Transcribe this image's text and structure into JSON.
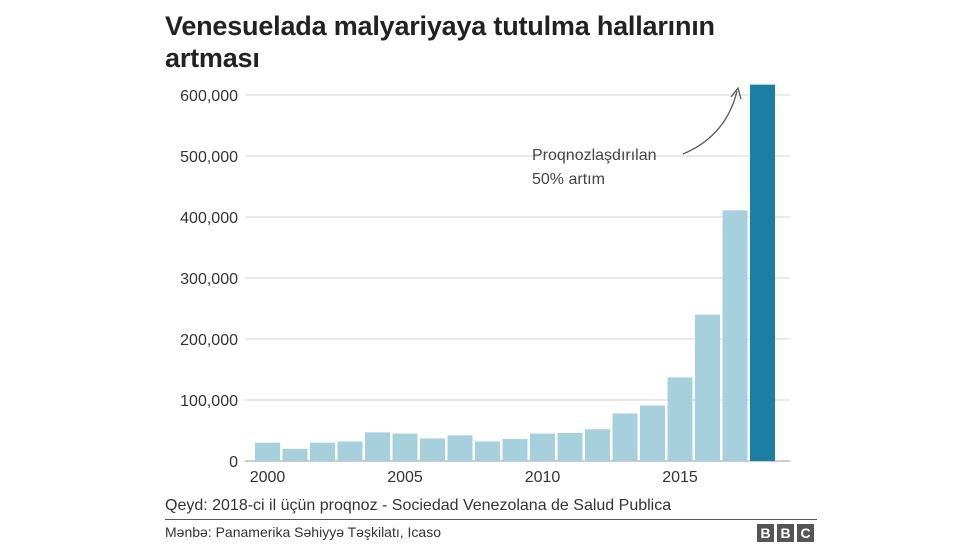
{
  "title": "Venesuelada malyariyaya tutulma hallarının artması",
  "note": "Qeyd: 2018-ci il üçün proqnoz - Sociedad Venezolana de Salud Publica",
  "source": "Mənbə: Panamerika Səhiyyə Təşkilatı, Icaso",
  "logo": [
    "B",
    "B",
    "C"
  ],
  "colors": {
    "bar": "#a7d0dd",
    "forecast_bar": "#1a7fa3",
    "grid": "#d6d6d6",
    "axis_text": "#333333"
  },
  "chart_data": {
    "type": "bar",
    "title": "Venesuelada malyariyaya tutulma hallarının artması",
    "xlabel": "",
    "ylabel": "",
    "categories": [
      2000,
      2001,
      2002,
      2003,
      2004,
      2005,
      2006,
      2007,
      2008,
      2009,
      2010,
      2011,
      2012,
      2013,
      2014,
      2015,
      2016,
      2017,
      2018
    ],
    "values": [
      30000,
      20000,
      30000,
      32000,
      47000,
      45000,
      37000,
      42000,
      32000,
      36000,
      45000,
      46000,
      52000,
      78000,
      91000,
      137000,
      240000,
      411000,
      617000
    ],
    "forecast_index": 18,
    "ylim": [
      0,
      600000
    ],
    "yticks": [
      0,
      100000,
      200000,
      300000,
      400000,
      500000,
      600000
    ],
    "ytick_labels": [
      "0",
      "100,000",
      "200,000",
      "300,000",
      "400,000",
      "500,000",
      "600,000"
    ],
    "xtick_labels": [
      "2000",
      "2005",
      "2010",
      "2015"
    ],
    "annotation": {
      "lines": [
        "Proqnozlaşdırılan",
        "50% artım"
      ]
    },
    "grid": true
  }
}
